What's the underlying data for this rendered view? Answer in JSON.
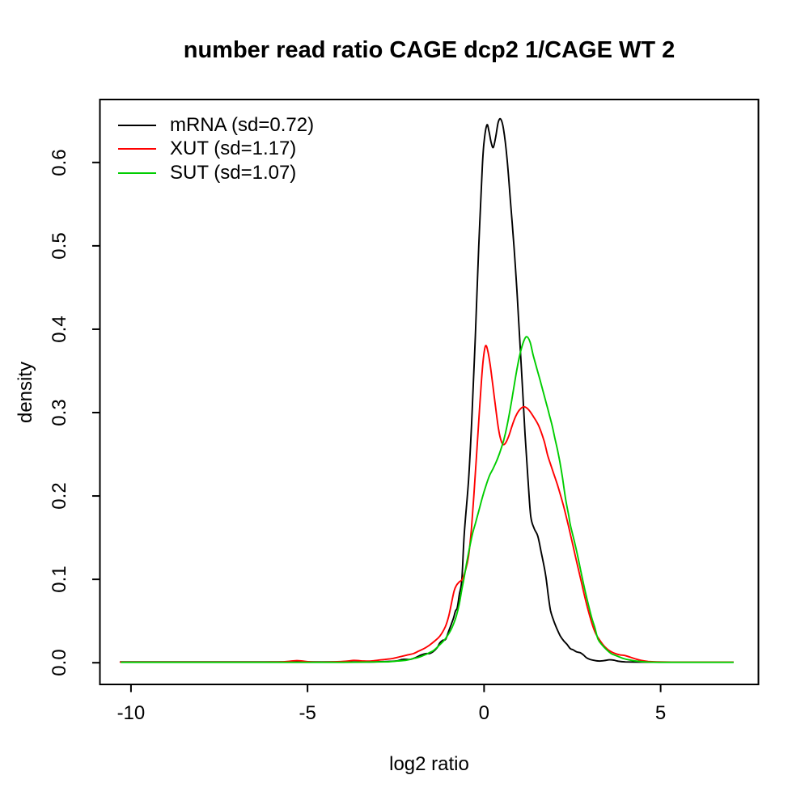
{
  "title": "number read ratio CAGE dcp2 1/CAGE WT 2",
  "axes": {
    "x_label": "log2 ratio",
    "y_label": "density",
    "x_ticks": [
      {
        "value": -10,
        "label": "-10"
      },
      {
        "value": -5,
        "label": "-5"
      },
      {
        "value": 0,
        "label": "0"
      },
      {
        "value": 5,
        "label": "5"
      }
    ],
    "y_ticks": [
      {
        "value": 0.0,
        "label": "0.0"
      },
      {
        "value": 0.1,
        "label": "0.1"
      },
      {
        "value": 0.2,
        "label": "0.2"
      },
      {
        "value": 0.3,
        "label": "0.3"
      },
      {
        "value": 0.4,
        "label": "0.4"
      },
      {
        "value": 0.5,
        "label": "0.5"
      },
      {
        "value": 0.6,
        "label": "0.6"
      }
    ]
  },
  "legend": {
    "position": "top-left",
    "items": [
      {
        "label": "mRNA (sd=0.72)",
        "color": "#000000"
      },
      {
        "label": "XUT (sd=1.17)",
        "color": "#ff0000"
      },
      {
        "label": "SUT (sd=1.07)",
        "color": "#00cd00"
      }
    ]
  },
  "chart_data": {
    "type": "line",
    "title": "number read ratio CAGE dcp2 1/CAGE WT 2",
    "xlabel": "log2 ratio",
    "ylabel": "density",
    "xlim": [
      -10.88,
      7.77
    ],
    "ylim": [
      -0.026,
      0.6755
    ],
    "grid": false,
    "legend_position": "top-left",
    "series": [
      {
        "name": "mRNA (sd=0.72)",
        "sd": 0.72,
        "color": "#000000",
        "points": [
          [
            -10.3,
            0.001
          ],
          [
            -9.5,
            0.001
          ],
          [
            -8.5,
            0.001
          ],
          [
            -7.5,
            0.001
          ],
          [
            -6.5,
            0.001
          ],
          [
            -5.5,
            0.001
          ],
          [
            -4.8,
            0.001
          ],
          [
            -4.2,
            0.001
          ],
          [
            -3.6,
            0.001
          ],
          [
            -3.1,
            0.001
          ],
          [
            -2.8,
            0.0015
          ],
          [
            -2.5,
            0.002
          ],
          [
            -2.3,
            0.004
          ],
          [
            -2.1,
            0.004
          ],
          [
            -1.95,
            0.006
          ],
          [
            -1.8,
            0.009
          ],
          [
            -1.65,
            0.011
          ],
          [
            -1.55,
            0.011
          ],
          [
            -1.45,
            0.013
          ],
          [
            -1.33,
            0.018
          ],
          [
            -1.25,
            0.024
          ],
          [
            -1.17,
            0.027
          ],
          [
            -1.09,
            0.028
          ],
          [
            -1.0,
            0.038
          ],
          [
            -0.93,
            0.046
          ],
          [
            -0.87,
            0.053
          ],
          [
            -0.81,
            0.062
          ],
          [
            -0.76,
            0.066
          ],
          [
            -0.7,
            0.082
          ],
          [
            -0.63,
            0.1
          ],
          [
            -0.56,
            0.155
          ],
          [
            -0.44,
            0.219
          ],
          [
            -0.35,
            0.29
          ],
          [
            -0.25,
            0.39
          ],
          [
            -0.15,
            0.5
          ],
          [
            -0.05,
            0.595
          ],
          [
            0.0,
            0.625
          ],
          [
            0.08,
            0.645
          ],
          [
            0.14,
            0.637
          ],
          [
            0.2,
            0.624
          ],
          [
            0.26,
            0.618
          ],
          [
            0.33,
            0.631
          ],
          [
            0.4,
            0.648
          ],
          [
            0.47,
            0.652
          ],
          [
            0.55,
            0.64
          ],
          [
            0.65,
            0.605
          ],
          [
            0.75,
            0.552
          ],
          [
            0.85,
            0.497
          ],
          [
            0.93,
            0.446
          ],
          [
            1.01,
            0.387
          ],
          [
            1.09,
            0.329
          ],
          [
            1.16,
            0.274
          ],
          [
            1.24,
            0.222
          ],
          [
            1.32,
            0.176
          ],
          [
            1.42,
            0.161
          ],
          [
            1.52,
            0.152
          ],
          [
            1.62,
            0.132
          ],
          [
            1.74,
            0.106
          ],
          [
            1.82,
            0.08
          ],
          [
            1.88,
            0.063
          ],
          [
            1.95,
            0.053
          ],
          [
            2.05,
            0.042
          ],
          [
            2.16,
            0.032
          ],
          [
            2.26,
            0.026
          ],
          [
            2.35,
            0.022
          ],
          [
            2.44,
            0.017
          ],
          [
            2.52,
            0.0155
          ],
          [
            2.62,
            0.013
          ],
          [
            2.72,
            0.012
          ],
          [
            2.81,
            0.0095
          ],
          [
            2.9,
            0.006
          ],
          [
            3.0,
            0.004
          ],
          [
            3.12,
            0.0028
          ],
          [
            3.25,
            0.002
          ],
          [
            3.4,
            0.0025
          ],
          [
            3.55,
            0.0035
          ],
          [
            3.68,
            0.003
          ],
          [
            3.8,
            0.0018
          ],
          [
            4.0,
            0.001
          ],
          [
            4.4,
            0.0008
          ],
          [
            5.0,
            0.0008
          ],
          [
            5.8,
            0.0008
          ],
          [
            6.5,
            0.0008
          ],
          [
            7.05,
            0.0008
          ]
        ]
      },
      {
        "name": "XUT (sd=1.17)",
        "sd": 1.17,
        "color": "#ff0000",
        "points": [
          [
            -10.3,
            0.0008
          ],
          [
            -9.5,
            0.0008
          ],
          [
            -8.5,
            0.0008
          ],
          [
            -7.5,
            0.0008
          ],
          [
            -6.8,
            0.0008
          ],
          [
            -6.2,
            0.0008
          ],
          [
            -5.75,
            0.001
          ],
          [
            -5.45,
            0.002
          ],
          [
            -5.3,
            0.0025
          ],
          [
            -5.15,
            0.002
          ],
          [
            -4.9,
            0.001
          ],
          [
            -4.6,
            0.0008
          ],
          [
            -4.3,
            0.001
          ],
          [
            -4.05,
            0.0015
          ],
          [
            -3.85,
            0.002
          ],
          [
            -3.7,
            0.0028
          ],
          [
            -3.55,
            0.0025
          ],
          [
            -3.4,
            0.002
          ],
          [
            -3.2,
            0.002
          ],
          [
            -3.0,
            0.003
          ],
          [
            -2.8,
            0.004
          ],
          [
            -2.6,
            0.005
          ],
          [
            -2.4,
            0.007
          ],
          [
            -2.2,
            0.009
          ],
          [
            -2.0,
            0.011
          ],
          [
            -1.85,
            0.014
          ],
          [
            -1.7,
            0.017
          ],
          [
            -1.55,
            0.021
          ],
          [
            -1.4,
            0.026
          ],
          [
            -1.25,
            0.032
          ],
          [
            -1.1,
            0.043
          ],
          [
            -1.0,
            0.056
          ],
          [
            -0.92,
            0.072
          ],
          [
            -0.85,
            0.086
          ],
          [
            -0.78,
            0.093
          ],
          [
            -0.7,
            0.097
          ],
          [
            -0.62,
            0.1
          ],
          [
            -0.52,
            0.112
          ],
          [
            -0.44,
            0.128
          ],
          [
            -0.36,
            0.16
          ],
          [
            -0.29,
            0.2
          ],
          [
            -0.22,
            0.245
          ],
          [
            -0.15,
            0.29
          ],
          [
            -0.08,
            0.335
          ],
          [
            -0.02,
            0.365
          ],
          [
            0.04,
            0.38
          ],
          [
            0.1,
            0.375
          ],
          [
            0.17,
            0.358
          ],
          [
            0.25,
            0.332
          ],
          [
            0.33,
            0.305
          ],
          [
            0.41,
            0.28
          ],
          [
            0.47,
            0.268
          ],
          [
            0.53,
            0.262
          ],
          [
            0.6,
            0.263
          ],
          [
            0.7,
            0.272
          ],
          [
            0.8,
            0.285
          ],
          [
            0.9,
            0.296
          ],
          [
            1.0,
            0.303
          ],
          [
            1.12,
            0.307
          ],
          [
            1.25,
            0.304
          ],
          [
            1.4,
            0.295
          ],
          [
            1.55,
            0.284
          ],
          [
            1.7,
            0.266
          ],
          [
            1.8,
            0.249
          ],
          [
            1.93,
            0.232
          ],
          [
            2.08,
            0.213
          ],
          [
            2.25,
            0.188
          ],
          [
            2.39,
            0.164
          ],
          [
            2.52,
            0.14
          ],
          [
            2.65,
            0.116
          ],
          [
            2.77,
            0.094
          ],
          [
            2.88,
            0.074
          ],
          [
            3.0,
            0.055
          ],
          [
            3.07,
            0.045
          ],
          [
            3.15,
            0.036
          ],
          [
            3.23,
            0.03
          ],
          [
            3.38,
            0.021
          ],
          [
            3.5,
            0.016
          ],
          [
            3.61,
            0.013
          ],
          [
            3.72,
            0.011
          ],
          [
            3.84,
            0.0095
          ],
          [
            4.0,
            0.0085
          ],
          [
            4.15,
            0.0065
          ],
          [
            4.3,
            0.0045
          ],
          [
            4.45,
            0.0028
          ],
          [
            4.65,
            0.0015
          ],
          [
            4.9,
            0.001
          ],
          [
            5.3,
            0.0008
          ],
          [
            6.0,
            0.0008
          ],
          [
            6.6,
            0.0008
          ],
          [
            7.05,
            0.0008
          ]
        ]
      },
      {
        "name": "SUT (sd=1.07)",
        "sd": 1.07,
        "color": "#00cd00",
        "points": [
          [
            -10.27,
            0.0005
          ],
          [
            -9.5,
            0.0005
          ],
          [
            -8.5,
            0.0005
          ],
          [
            -7.5,
            0.0005
          ],
          [
            -6.5,
            0.0005
          ],
          [
            -5.5,
            0.0005
          ],
          [
            -4.75,
            0.0005
          ],
          [
            -4.0,
            0.0005
          ],
          [
            -3.4,
            0.0008
          ],
          [
            -3.0,
            0.001
          ],
          [
            -2.7,
            0.0012
          ],
          [
            -2.45,
            0.002
          ],
          [
            -2.2,
            0.003
          ],
          [
            -2.0,
            0.005
          ],
          [
            -1.85,
            0.0065
          ],
          [
            -1.7,
            0.009
          ],
          [
            -1.55,
            0.012
          ],
          [
            -1.42,
            0.015
          ],
          [
            -1.28,
            0.0205
          ],
          [
            -1.15,
            0.026
          ],
          [
            -1.05,
            0.0315
          ],
          [
            -0.95,
            0.0385
          ],
          [
            -0.86,
            0.047
          ],
          [
            -0.78,
            0.057
          ],
          [
            -0.7,
            0.071
          ],
          [
            -0.63,
            0.088
          ],
          [
            -0.57,
            0.101
          ],
          [
            -0.5,
            0.118
          ],
          [
            -0.42,
            0.136
          ],
          [
            -0.33,
            0.1545
          ],
          [
            -0.24,
            0.168
          ],
          [
            -0.15,
            0.182
          ],
          [
            -0.05,
            0.198
          ],
          [
            0.05,
            0.212
          ],
          [
            0.15,
            0.224
          ],
          [
            0.245,
            0.232
          ],
          [
            0.35,
            0.2415
          ],
          [
            0.44,
            0.2515
          ],
          [
            0.55,
            0.266
          ],
          [
            0.65,
            0.284
          ],
          [
            0.78,
            0.314
          ],
          [
            0.9,
            0.345
          ],
          [
            1.0,
            0.367
          ],
          [
            1.1,
            0.383
          ],
          [
            1.2,
            0.391
          ],
          [
            1.3,
            0.385
          ],
          [
            1.39,
            0.369
          ],
          [
            1.5,
            0.352
          ],
          [
            1.58,
            0.34
          ],
          [
            1.68,
            0.324
          ],
          [
            1.77,
            0.31
          ],
          [
            1.85,
            0.297
          ],
          [
            1.93,
            0.284
          ],
          [
            2.0,
            0.27
          ],
          [
            2.08,
            0.255
          ],
          [
            2.15,
            0.24
          ],
          [
            2.22,
            0.222
          ],
          [
            2.31,
            0.196
          ],
          [
            2.4,
            0.176
          ],
          [
            2.45,
            0.164
          ],
          [
            2.6,
            0.138
          ],
          [
            2.73,
            0.112
          ],
          [
            2.85,
            0.088
          ],
          [
            2.94,
            0.072
          ],
          [
            3.04,
            0.055
          ],
          [
            3.13,
            0.043
          ],
          [
            3.23,
            0.028
          ],
          [
            3.35,
            0.021
          ],
          [
            3.46,
            0.016
          ],
          [
            3.6,
            0.011
          ],
          [
            3.77,
            0.008
          ],
          [
            3.95,
            0.005
          ],
          [
            4.14,
            0.0032
          ],
          [
            4.35,
            0.0018
          ],
          [
            4.55,
            0.001
          ],
          [
            4.8,
            0.0006
          ],
          [
            5.2,
            0.0005
          ],
          [
            6.0,
            0.0005
          ],
          [
            6.6,
            0.0005
          ],
          [
            7.05,
            0.0005
          ]
        ]
      }
    ]
  }
}
